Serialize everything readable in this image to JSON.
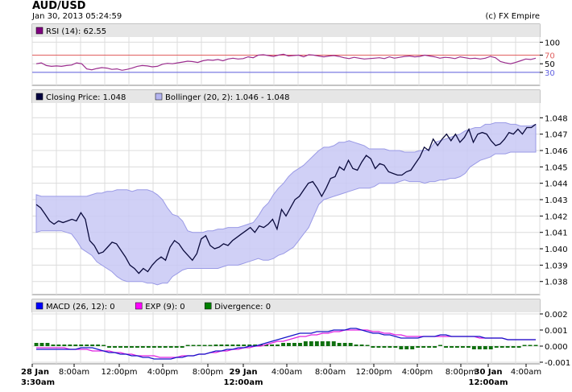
{
  "header": {
    "title": "AUD/USD",
    "timestamp": "Jan 30, 2013 05:24:59",
    "credit": "(c) FX Empire"
  },
  "chart_data": [
    {
      "type": "line",
      "panel": "rsi",
      "legend": [
        {
          "label": "RSI (14): 62.55",
          "color": "#800080"
        }
      ],
      "ylim": [
        0,
        112
      ],
      "yticks": [
        100,
        70,
        50,
        30
      ],
      "levels": [
        {
          "value": 70,
          "color": "#e06060"
        },
        {
          "value": 30,
          "color": "#6060e0"
        }
      ],
      "series": [
        {
          "name": "RSI (14)",
          "color": "#9b2d8e",
          "values": [
            50,
            52,
            46,
            44,
            45,
            44,
            46,
            47,
            52,
            50,
            38,
            36,
            39,
            41,
            40,
            37,
            38,
            35,
            37,
            40,
            44,
            46,
            45,
            43,
            44,
            49,
            51,
            50,
            52,
            54,
            56,
            55,
            53,
            57,
            59,
            58,
            60,
            57,
            61,
            63,
            61,
            62,
            66,
            64,
            70,
            71,
            69,
            67,
            70,
            72,
            68,
            69,
            70,
            66,
            71,
            70,
            68,
            66,
            68,
            69,
            67,
            64,
            62,
            65,
            63,
            61,
            62,
            63,
            64,
            62,
            66,
            63,
            65,
            67,
            68,
            66,
            67,
            70,
            68,
            66,
            63,
            65,
            64,
            62,
            66,
            64,
            62,
            63,
            61,
            63,
            67,
            64,
            55,
            52,
            50,
            53,
            57,
            61,
            60,
            63
          ]
        }
      ]
    },
    {
      "type": "line",
      "panel": "price",
      "legend": [
        {
          "label": "Closing Price: 1.048",
          "color": "#000040"
        },
        {
          "label": "Bollinger (20, 2): 1.046 - 1.048",
          "color": "#b4b4f0"
        }
      ],
      "ylim": [
        1.0372,
        1.0489
      ],
      "yticks": [
        "1.048",
        "1.047",
        "1.046",
        "1.045",
        "1.044",
        "1.043",
        "1.042",
        "1.041",
        "1.040",
        "1.039",
        "1.038"
      ],
      "series": [
        {
          "name": "Closing Price",
          "color": "#0a0a3c",
          "values": [
            1.0427,
            1.0425,
            1.0421,
            1.0417,
            1.0415,
            1.0417,
            1.0416,
            1.0417,
            1.0418,
            1.0417,
            1.0422,
            1.0418,
            1.0405,
            1.0402,
            1.0397,
            1.0398,
            1.0401,
            1.0404,
            1.0403,
            1.0399,
            1.0395,
            1.039,
            1.0388,
            1.0385,
            1.0388,
            1.0386,
            1.039,
            1.0393,
            1.0395,
            1.0393,
            1.0401,
            1.0405,
            1.0403,
            1.0399,
            1.0396,
            1.0393,
            1.0397,
            1.0406,
            1.0408,
            1.0402,
            1.04,
            1.0401,
            1.0403,
            1.0402,
            1.0405,
            1.0407,
            1.0409,
            1.0411,
            1.0413,
            1.041,
            1.0414,
            1.0413,
            1.0415,
            1.0418,
            1.0412,
            1.0424,
            1.042,
            1.0425,
            1.043,
            1.0432,
            1.0436,
            1.044,
            1.0441,
            1.0437,
            1.0432,
            1.0437,
            1.0443,
            1.0444,
            1.045,
            1.0448,
            1.0454,
            1.0449,
            1.0448,
            1.0453,
            1.0457,
            1.0455,
            1.0449,
            1.0452,
            1.0451,
            1.0447,
            1.0446,
            1.0445,
            1.0445,
            1.0447,
            1.0448,
            1.0452,
            1.0456,
            1.0462,
            1.046,
            1.0467,
            1.0463,
            1.0467,
            1.047,
            1.0466,
            1.047,
            1.0465,
            1.0468,
            1.0473,
            1.0465,
            1.047,
            1.0471,
            1.047,
            1.0466,
            1.0463,
            1.0464,
            1.0467,
            1.0471,
            1.047,
            1.0473,
            1.047,
            1.0474,
            1.0474,
            1.0476
          ]
        },
        {
          "name": "Bollinger Upper",
          "color": "#b4b4f0",
          "values": [
            1.0433,
            1.0432,
            1.0432,
            1.0432,
            1.0432,
            1.0432,
            1.0432,
            1.0432,
            1.0432,
            1.0432,
            1.0432,
            1.0433,
            1.0434,
            1.0434,
            1.0435,
            1.0435,
            1.0436,
            1.0436,
            1.0436,
            1.0435,
            1.0436,
            1.0436,
            1.0436,
            1.0435,
            1.0433,
            1.043,
            1.0425,
            1.0421,
            1.042,
            1.0417,
            1.0411,
            1.041,
            1.041,
            1.041,
            1.0411,
            1.0411,
            1.0412,
            1.0412,
            1.0413,
            1.0413,
            1.0413,
            1.0414,
            1.0415,
            1.0416,
            1.042,
            1.0425,
            1.0428,
            1.0433,
            1.0437,
            1.044,
            1.0444,
            1.0447,
            1.0449,
            1.0451,
            1.0454,
            1.0457,
            1.046,
            1.0462,
            1.0462,
            1.0463,
            1.0465,
            1.0465,
            1.0466,
            1.0465,
            1.0464,
            1.0463,
            1.0461,
            1.0461,
            1.0461,
            1.0461,
            1.046,
            1.046,
            1.046,
            1.0459,
            1.0459,
            1.0459,
            1.046,
            1.046,
            1.0461,
            1.0465,
            1.0466,
            1.0467,
            1.0468,
            1.0469,
            1.047,
            1.0472,
            1.0473,
            1.0474,
            1.0474,
            1.0476,
            1.0476,
            1.0477,
            1.0477,
            1.0477,
            1.0476,
            1.0476,
            1.0475,
            1.0475,
            1.0475,
            1.0476
          ]
        },
        {
          "name": "Bollinger Lower",
          "color": "#b4b4f0",
          "values": [
            1.041,
            1.0411,
            1.0411,
            1.0411,
            1.0411,
            1.0411,
            1.041,
            1.0409,
            1.0405,
            1.04,
            1.0398,
            1.0396,
            1.0392,
            1.039,
            1.0388,
            1.0386,
            1.0383,
            1.0381,
            1.038,
            1.038,
            1.038,
            1.038,
            1.0379,
            1.0379,
            1.0378,
            1.0379,
            1.0379,
            1.0383,
            1.0385,
            1.0387,
            1.0388,
            1.0388,
            1.0388,
            1.0388,
            1.0388,
            1.0388,
            1.0388,
            1.0389,
            1.039,
            1.039,
            1.039,
            1.0391,
            1.0392,
            1.0393,
            1.0394,
            1.0393,
            1.0393,
            1.0394,
            1.0396,
            1.0397,
            1.0399,
            1.0401,
            1.0405,
            1.0409,
            1.0413,
            1.042,
            1.0427,
            1.043,
            1.0431,
            1.0432,
            1.0433,
            1.0434,
            1.0435,
            1.0436,
            1.0437,
            1.0437,
            1.0437,
            1.0438,
            1.044,
            1.044,
            1.044,
            1.044,
            1.0441,
            1.0442,
            1.0441,
            1.0441,
            1.0441,
            1.044,
            1.0441,
            1.0441,
            1.0442,
            1.0442,
            1.0443,
            1.0443,
            1.0444,
            1.0446,
            1.045,
            1.0452,
            1.0454,
            1.0455,
            1.0456,
            1.0458,
            1.0458,
            1.0458,
            1.0459,
            1.0459,
            1.0459,
            1.0459,
            1.0459,
            1.0459
          ]
        }
      ]
    },
    {
      "type": "bar",
      "panel": "macd",
      "legend": [
        {
          "label": "MACD (26, 12): 0",
          "color": "#0000ff"
        },
        {
          "label": "EXP (9): 0",
          "color": "#ff00ff"
        },
        {
          "label": "Divergence: 0",
          "color": "#008000"
        }
      ],
      "ylim": [
        -0.0011,
        0.0021
      ],
      "yticks": [
        "0.002",
        "0.001",
        "0.000",
        "-0.001"
      ],
      "series": [
        {
          "name": "MACD",
          "color": "#1414c8",
          "values": [
            -0.0002,
            -0.0002,
            -0.0002,
            -0.0002,
            -0.0002,
            -0.0002,
            -0.0002,
            -0.0002,
            -0.0001,
            -0.0001,
            -0.0001,
            -0.0002,
            -0.0003,
            -0.0004,
            -0.0004,
            -0.0005,
            -0.0005,
            -0.0006,
            -0.0006,
            -0.0007,
            -0.0007,
            -0.0008,
            -0.0008,
            -0.0008,
            -0.0008,
            -0.0007,
            -0.0007,
            -0.0006,
            -0.0006,
            -0.0005,
            -0.0005,
            -0.0004,
            -0.0003,
            -0.0003,
            -0.0002,
            -0.0002,
            -0.0001,
            -0.0001,
            0.0,
            0.0,
            0.0001,
            0.0002,
            0.0003,
            0.0004,
            0.0005,
            0.0006,
            0.0007,
            0.0008,
            0.0008,
            0.0008,
            0.0009,
            0.0009,
            0.0009,
            0.001,
            0.001,
            0.001,
            0.0011,
            0.0011,
            0.001,
            0.0009,
            0.0008,
            0.0008,
            0.0007,
            0.0007,
            0.0006,
            0.0005,
            0.0005,
            0.0005,
            0.0005,
            0.0006,
            0.0006,
            0.0006,
            0.0007,
            0.0007,
            0.0006,
            0.0006,
            0.0006,
            0.0006,
            0.0006,
            0.0006,
            0.0005,
            0.0005,
            0.0005,
            0.0005,
            0.0004,
            0.0004,
            0.0004,
            0.0004,
            0.0004,
            0.0004
          ]
        },
        {
          "name": "EXP",
          "color": "#e020e0",
          "values": [
            -0.0001,
            -0.0001,
            -0.0001,
            -0.0001,
            -0.0001,
            -0.0001,
            -0.0002,
            -0.0002,
            -0.0002,
            -0.0002,
            -0.0003,
            -0.0003,
            -0.0003,
            -0.0003,
            -0.0004,
            -0.0004,
            -0.0005,
            -0.0005,
            -0.0006,
            -0.0006,
            -0.0006,
            -0.0006,
            -0.0007,
            -0.0007,
            -0.0007,
            -0.0007,
            -0.0006,
            -0.0006,
            -0.0006,
            -0.0005,
            -0.0005,
            -0.0004,
            -0.0004,
            -0.0003,
            -0.0003,
            -0.0002,
            -0.0002,
            -0.0001,
            -0.0001,
            0.0,
            0.0,
            0.0001,
            0.0002,
            0.0003,
            0.0003,
            0.0004,
            0.0005,
            0.0006,
            0.0006,
            0.0007,
            0.0007,
            0.0008,
            0.0008,
            0.0009,
            0.0009,
            0.001,
            0.001,
            0.001,
            0.001,
            0.001,
            0.0009,
            0.0009,
            0.0008,
            0.0008,
            0.0007,
            0.0007,
            0.0006,
            0.0006,
            0.0006,
            0.0006,
            0.0006,
            0.0006,
            0.0006,
            0.0006,
            0.0006,
            0.0006,
            0.0006,
            0.0006,
            0.0006,
            0.0005,
            0.0005,
            0.0005,
            0.0005,
            0.0005,
            0.0004,
            0.0004,
            0.0004,
            0.0004,
            0.0004,
            0.0004
          ]
        },
        {
          "name": "Divergence",
          "color": "#107010",
          "values": [
            0.0002,
            0.0002,
            0.0002,
            0.0001,
            0.0001,
            0.0001,
            0.0001,
            0.0001,
            0.0001,
            0.0001,
            0.0001,
            0.0001,
            0.0,
            -0.0001,
            -0.0001,
            -0.0001,
            -0.0001,
            -0.0001,
            -0.0001,
            -0.0001,
            -0.0001,
            -0.0001,
            -0.0001,
            -0.0001,
            -0.0001,
            -0.0001,
            -0.0001,
            0.0,
            0.0,
            0.0,
            0.0,
            0.0,
            0.0001,
            0.0001,
            0.0001,
            0.0001,
            0.0001,
            0.0001,
            0.0001,
            0.0001,
            0.0001,
            0.0001,
            0.0001,
            0.0001,
            0.0002,
            0.0002,
            0.0002,
            0.0002,
            0.0003,
            0.0003,
            0.0003,
            0.0003,
            0.0003,
            0.0003,
            0.0002,
            0.0002,
            0.0002,
            0.0001,
            0.0001,
            0.0,
            -0.0001,
            -0.0001,
            -0.0001,
            -0.0001,
            -0.0001,
            -0.0002,
            -0.0002,
            -0.0002,
            -0.0001,
            -0.0001,
            -0.0001,
            -0.0001,
            0.0,
            -0.0001,
            -0.0001,
            -0.0001,
            -0.0001,
            -0.0001,
            -0.0002,
            -0.0002,
            -0.0002,
            -0.0002,
            -0.0001,
            -0.0001,
            -0.0001,
            -0.0001,
            -0.0001,
            0.0,
            0.0,
            0.0
          ]
        }
      ]
    },
    {
      "type": "axis",
      "panel": "time-axis",
      "xticks": [
        {
          "label": "28 Jan",
          "sub": "3:30am",
          "bold": true
        },
        {
          "label": "8:00am",
          "sub": "",
          "bold": false
        },
        {
          "label": "12:00pm",
          "sub": "",
          "bold": false
        },
        {
          "label": "4:00pm",
          "sub": "",
          "bold": false
        },
        {
          "label": "8:00pm",
          "sub": "",
          "bold": false
        },
        {
          "label": "29 Jan",
          "sub": "12:00am",
          "bold": true
        },
        {
          "label": "4:00am",
          "sub": "",
          "bold": false
        },
        {
          "label": "8:00am",
          "sub": "",
          "bold": false
        },
        {
          "label": "12:00pm",
          "sub": "",
          "bold": false
        },
        {
          "label": "4:00pm",
          "sub": "",
          "bold": false
        },
        {
          "label": "8:00pm",
          "sub": "",
          "bold": false
        },
        {
          "label": "30 Jan",
          "sub": "12:00am",
          "bold": true
        },
        {
          "label": "4:00am",
          "sub": "",
          "bold": false
        }
      ]
    }
  ]
}
